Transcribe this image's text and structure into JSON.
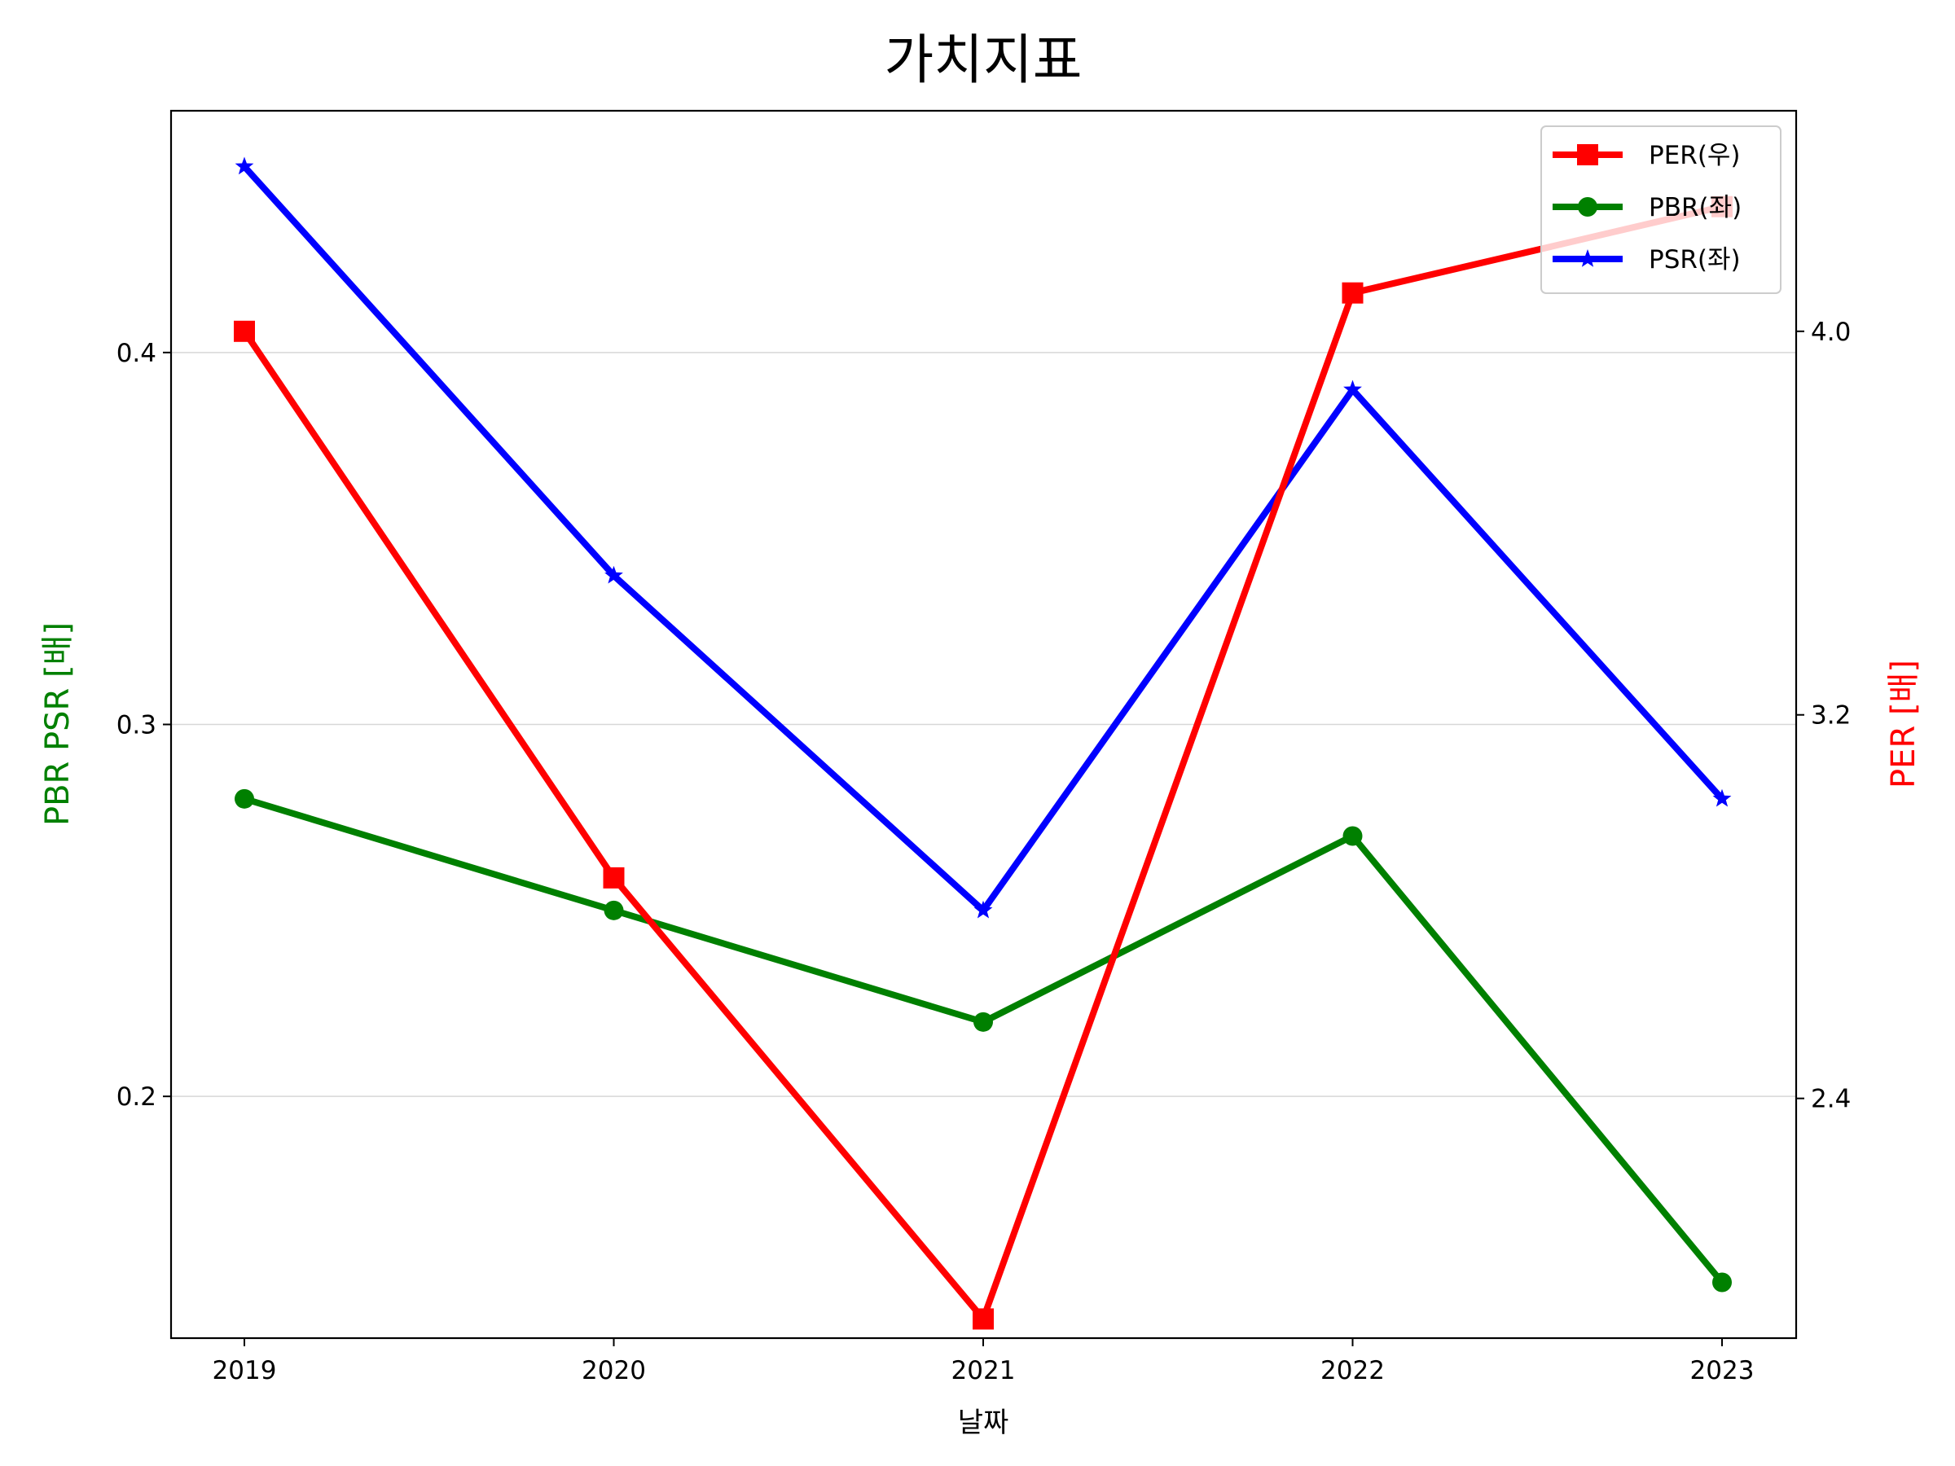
{
  "chart_data": {
    "type": "line",
    "title": "가치지표",
    "xlabel": "날짜",
    "ylabel_left": "PBR PSR [배]",
    "ylabel_right": "PER [배]",
    "ylabel_left_color": "#008000",
    "ylabel_right_color": "#ff0000",
    "categories": [
      "2019",
      "2020",
      "2021",
      "2022",
      "2023"
    ],
    "x_tick_labels": [
      "2019",
      "2020",
      "2021",
      "2022",
      "2023"
    ],
    "left_y_ticks": [
      "0.2",
      "0.3",
      "0.4"
    ],
    "right_y_ticks": [
      "2.4",
      "3.2",
      "4.0"
    ],
    "left_ylim": [
      0.135,
      0.465
    ],
    "right_ylim": [
      1.9,
      4.46
    ],
    "grid": "horizontal (left axis)",
    "legend_position": "top-right",
    "series": [
      {
        "name": "PER(우)",
        "axis": "right",
        "color": "#ff0000",
        "marker": "square",
        "values": [
          4.0,
          2.86,
          1.94,
          4.08,
          4.26
        ]
      },
      {
        "name": "PBR(좌)",
        "axis": "left",
        "color": "#008000",
        "marker": "circle",
        "values": [
          0.28,
          0.25,
          0.22,
          0.27,
          0.15
        ]
      },
      {
        "name": "PSR(좌)",
        "axis": "left",
        "color": "#0000ff",
        "marker": "star",
        "values": [
          0.45,
          0.34,
          0.25,
          0.39,
          0.28
        ]
      }
    ]
  }
}
